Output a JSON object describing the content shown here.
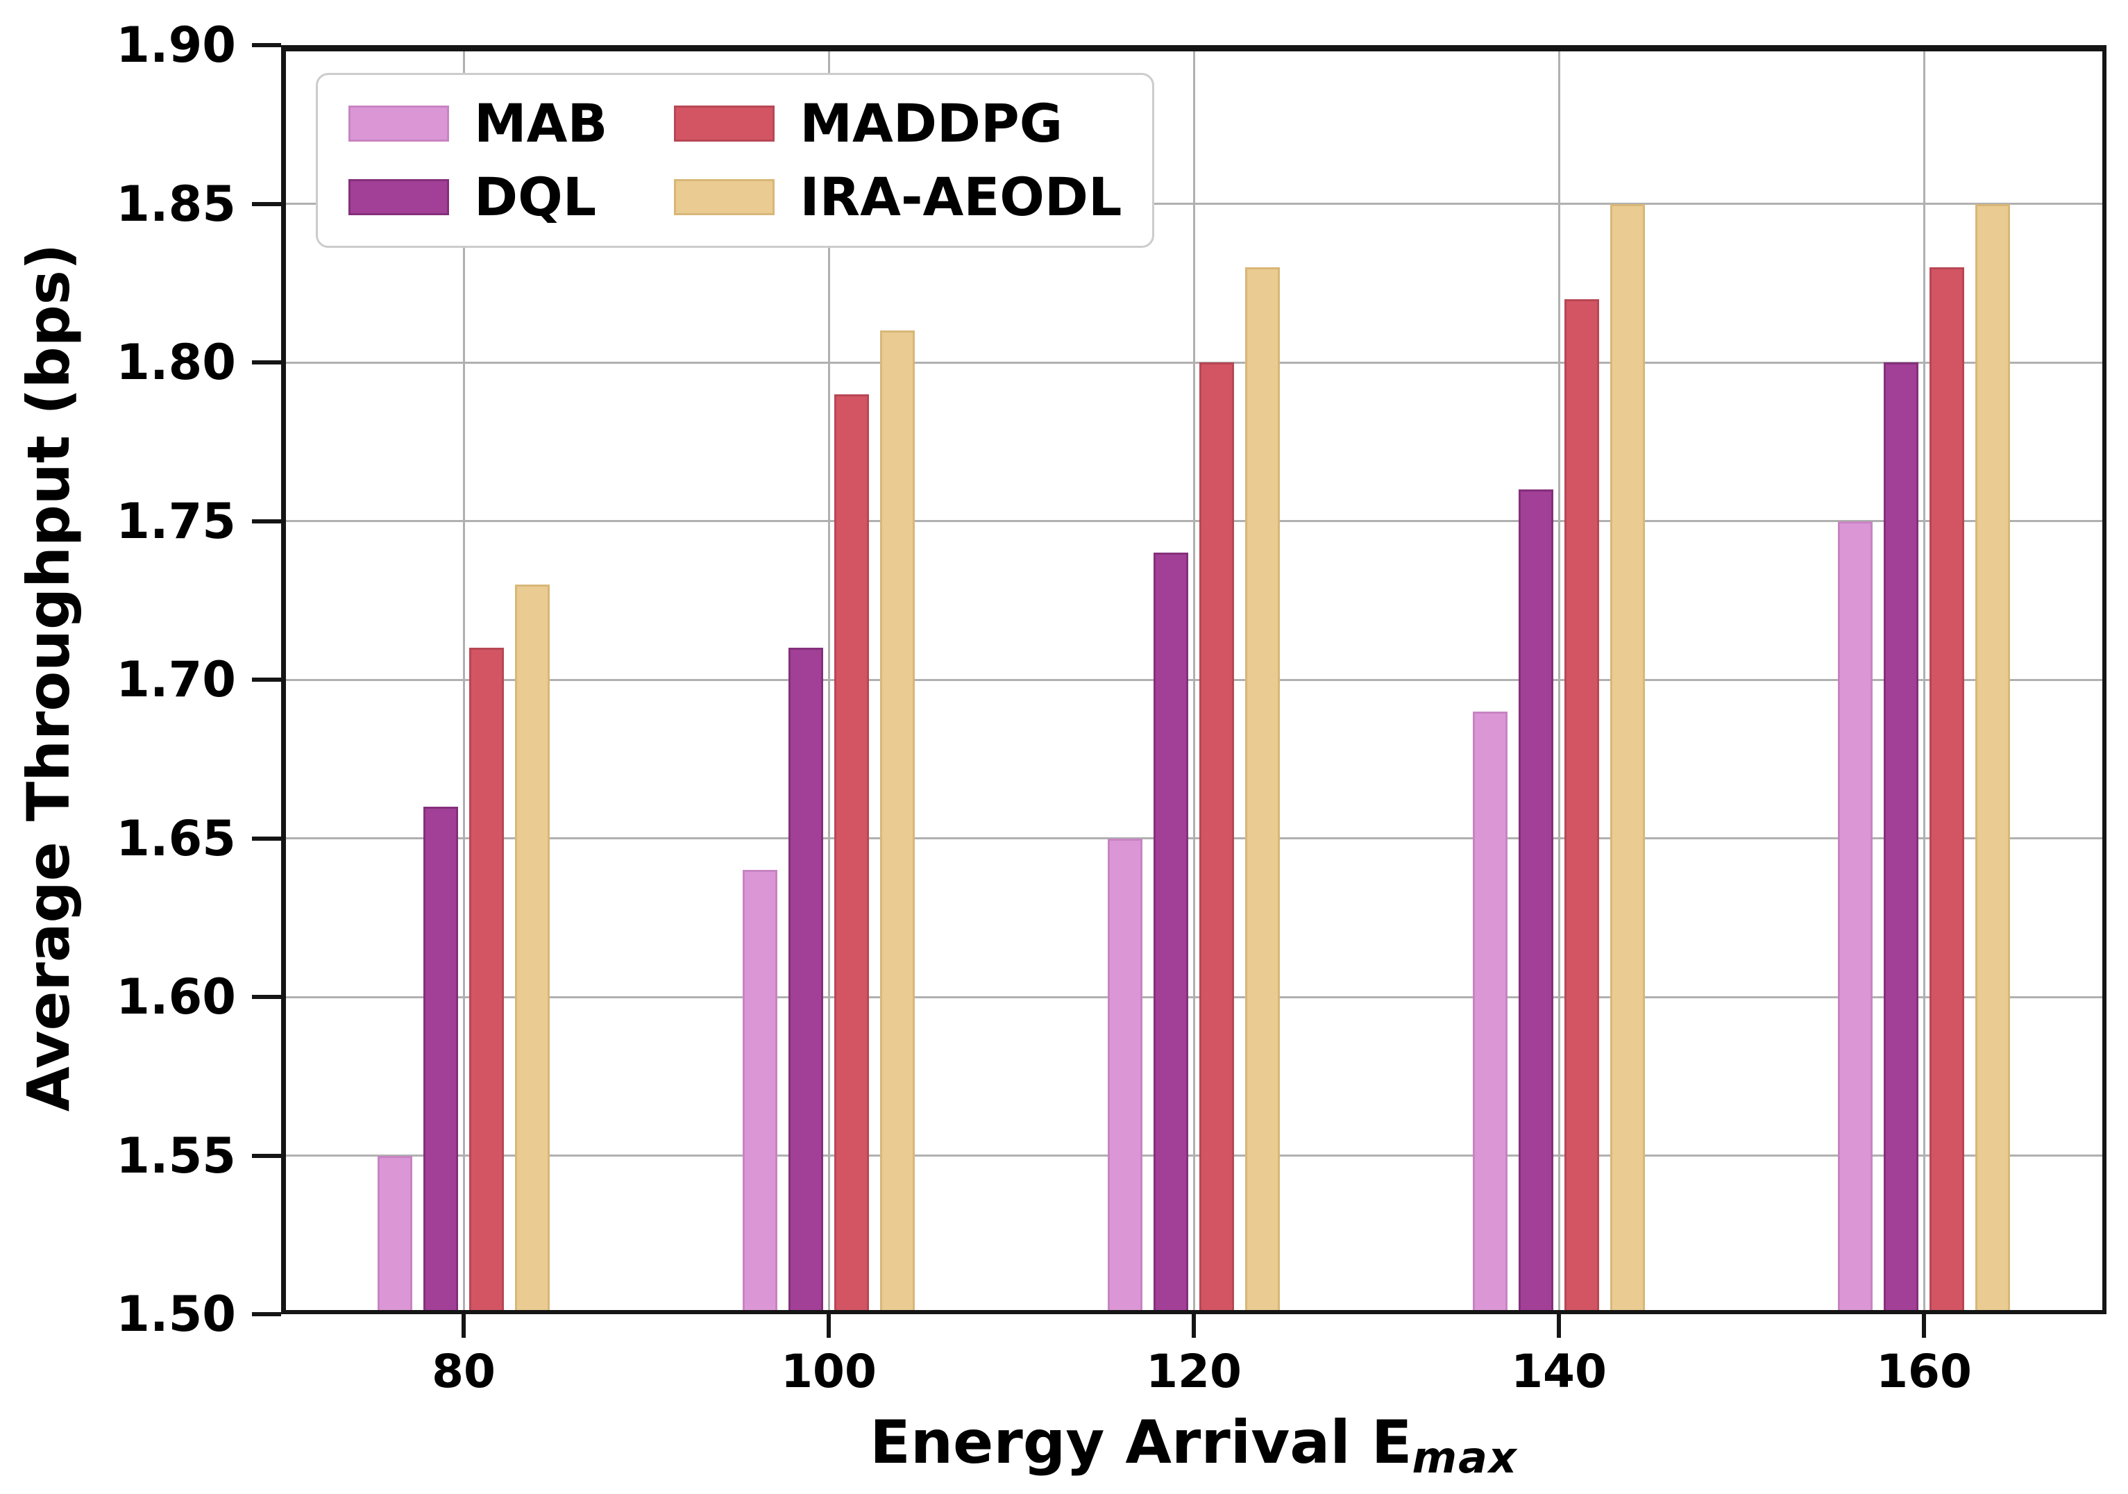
{
  "figure": {
    "background": "#ffffff"
  },
  "chart_data": {
    "type": "bar",
    "title": "",
    "ylabel": "Average Throughput (bps)",
    "xlabel": {
      "text": "Energy Arrival E",
      "subscript": "max"
    },
    "categories": [
      "80",
      "100",
      "120",
      "140",
      "160"
    ],
    "series": [
      {
        "name": "MAB",
        "color": "#DB97D5",
        "edge_color": "#C884C2",
        "values": [
          1.55,
          1.64,
          1.65,
          1.69,
          1.75
        ]
      },
      {
        "name": "DQL",
        "color": "#A23F97",
        "edge_color": "#84307B",
        "values": [
          1.66,
          1.71,
          1.74,
          1.76,
          1.8
        ]
      },
      {
        "name": "MADDPG",
        "color": "#D35564",
        "edge_color": "#B84754",
        "values": [
          1.71,
          1.79,
          1.8,
          1.82,
          1.83
        ]
      },
      {
        "name": "IRA-AEODL",
        "color": "#EACB92",
        "edge_color": "#D8B778",
        "values": [
          1.73,
          1.81,
          1.83,
          1.85,
          1.85
        ]
      }
    ],
    "ylim": [
      1.5,
      1.9
    ],
    "ytick_step": 0.05,
    "ytick_labels": [
      "1.50",
      "1.55",
      "1.60",
      "1.65",
      "1.70",
      "1.75",
      "1.80",
      "1.85",
      "1.90"
    ],
    "grid": true,
    "legend_position": "upper-left"
  },
  "colors": {
    "grid": "#b0b0b0",
    "spine": "#151515",
    "text": "#000000",
    "legend_border": "#cccccc",
    "background": "#ffffff"
  }
}
